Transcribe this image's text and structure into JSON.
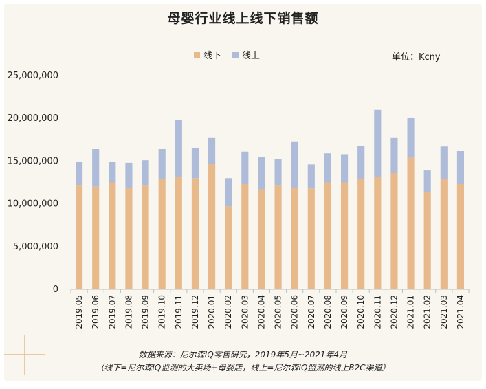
{
  "title": "母婴行业线上线下销售额",
  "unit_label": "单位：Kcny",
  "source_line1": "数据来源：尼尔森IQ零售研究，2019年5月~2021年4月",
  "source_line2": "（线下=尼尔森IQ监测的大卖场+母婴店，线上=尼尔森IQ监测的线上B2C渠道）",
  "colors": {
    "offline": "#e8b98a",
    "online": "#aebcd9",
    "background": "#f9f5ef"
  },
  "chart_data": {
    "type": "bar",
    "stacked": true,
    "title": "母婴行业线上线下销售额",
    "categories": [
      "2019.05",
      "2019.06",
      "2019.07",
      "2019.08",
      "2019.09",
      "2019.10",
      "2019.11",
      "2019.12",
      "2020.01",
      "2020.02",
      "2020.03",
      "2020.04",
      "2020.05",
      "2020.06",
      "2020.07",
      "2020.08",
      "2020.09",
      "2020.10",
      "2020.11",
      "2020.12",
      "2021.01",
      "2021.02",
      "2021.03",
      "2021.04"
    ],
    "series": [
      {
        "name": "线下",
        "values": [
          12200000,
          12000000,
          12500000,
          11900000,
          12200000,
          12900000,
          13100000,
          13000000,
          14700000,
          9700000,
          12300000,
          11700000,
          12200000,
          11900000,
          11800000,
          12500000,
          12500000,
          12900000,
          13100000,
          13600000,
          15400000,
          11400000,
          12900000,
          12300000
        ]
      },
      {
        "name": "线上",
        "values": [
          2700000,
          4400000,
          2400000,
          2900000,
          2900000,
          3500000,
          6700000,
          3500000,
          3000000,
          3300000,
          3800000,
          3800000,
          3000000,
          5400000,
          2800000,
          3400000,
          3300000,
          3900000,
          7900000,
          4100000,
          4700000,
          2500000,
          3800000,
          3900000
        ]
      }
    ],
    "ylim": [
      0,
      25000000
    ],
    "yticks": [
      0,
      5000000,
      10000000,
      15000000,
      20000000,
      25000000
    ],
    "ytick_labels": [
      "0",
      "5,000,000",
      "10,000,000",
      "15,000,000",
      "20,000,000",
      "25,000,000"
    ],
    "grid": false,
    "legend_position": "top-center"
  }
}
